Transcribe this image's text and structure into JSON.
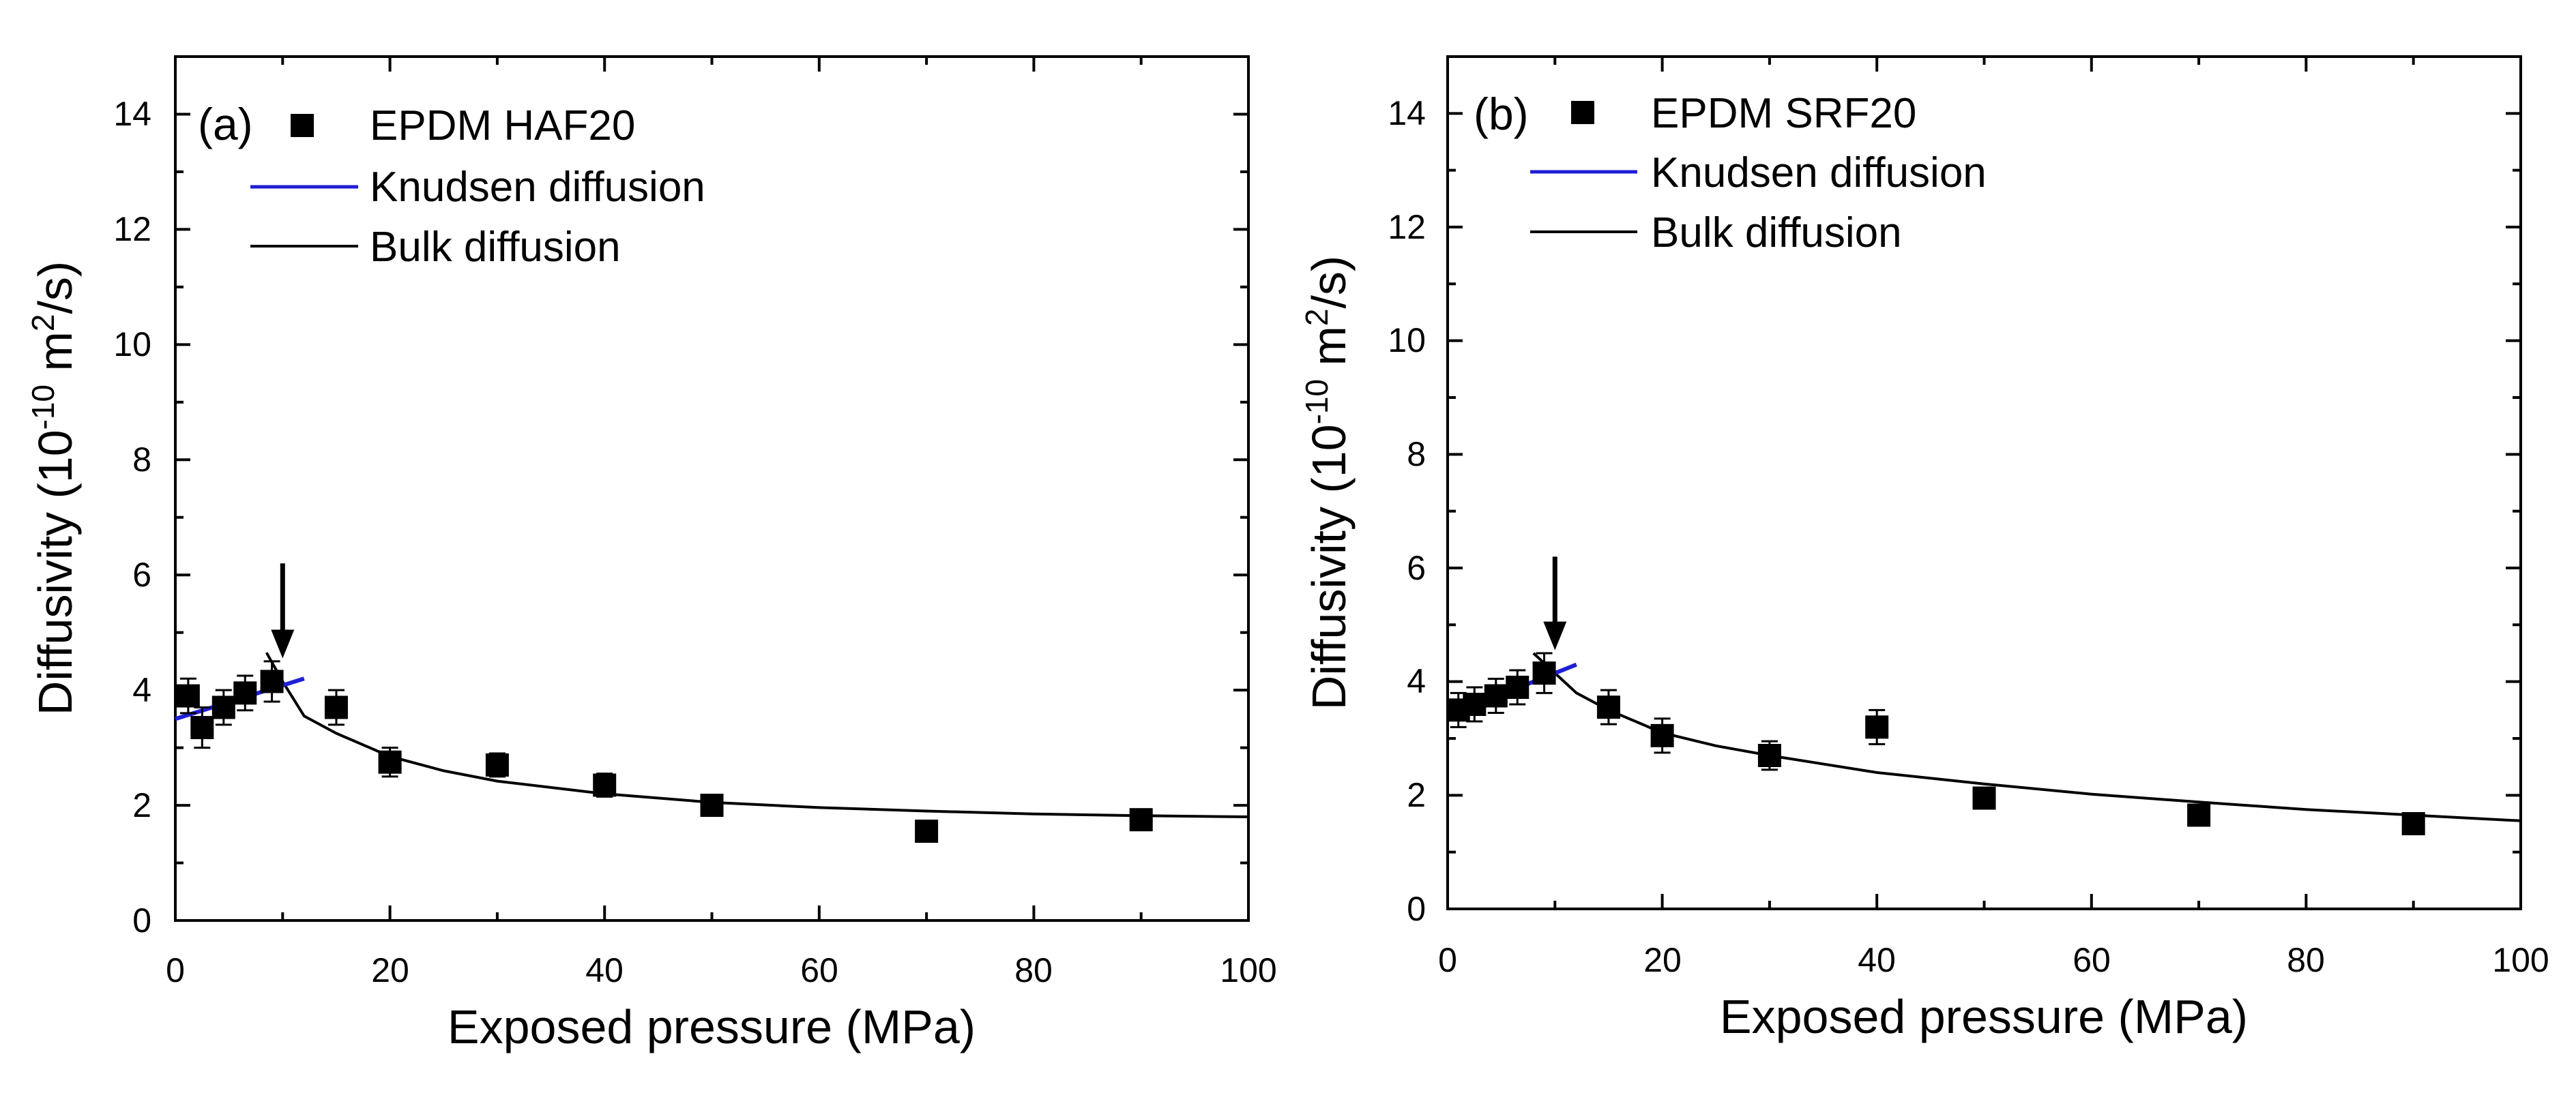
{
  "chart_data": [
    {
      "type": "scatter",
      "panel_label": "(a)",
      "title": "",
      "xlabel": "Exposed pressure (MPa)",
      "ylabel_base": "Diffusivity (10",
      "ylabel_exp1": "-10",
      "ylabel_mid": " m",
      "ylabel_exp2": "2",
      "ylabel_end": "/s)",
      "xlim": [
        0,
        100
      ],
      "ylim": [
        0,
        15
      ],
      "xticks": [
        0,
        20,
        40,
        60,
        80,
        100
      ],
      "yticks": [
        0,
        2,
        4,
        6,
        8,
        10,
        12,
        14
      ],
      "xtick_labels": [
        "0",
        "20",
        "40",
        "60",
        "80",
        "100"
      ],
      "ytick_labels": [
        "0",
        "2",
        "4",
        "6",
        "8",
        "10",
        "12",
        "14"
      ],
      "legend": [
        "EPDM HAF20",
        "Knudsen diffusion",
        "Bulk diffusion"
      ],
      "legend_position": "top-left",
      "colors": {
        "points": "#000000",
        "knudsen": "#1f1fd6",
        "bulk": "#000000"
      },
      "series": [
        {
          "name": "EPDM HAF20",
          "x": [
            1.2,
            2.5,
            4.5,
            6.5,
            9.0,
            15,
            20,
            30,
            40,
            50,
            70,
            90
          ],
          "y": [
            3.9,
            3.35,
            3.7,
            3.95,
            4.15,
            3.7,
            2.75,
            2.7,
            2.35,
            2.0,
            1.55,
            1.75
          ],
          "err": [
            0.3,
            0.35,
            0.3,
            0.3,
            0.35,
            0.3,
            0.25,
            0.2,
            0.2,
            0.15,
            0.12,
            0.12
          ]
        },
        {
          "name": "Knudsen diffusion",
          "x": [
            0,
            12
          ],
          "y": [
            3.5,
            4.2
          ]
        },
        {
          "name": "Bulk diffusion",
          "x": [
            8.5,
            10,
            12,
            15,
            20,
            25,
            30,
            40,
            50,
            60,
            70,
            80,
            90,
            100
          ],
          "y": [
            4.65,
            4.15,
            3.55,
            3.25,
            2.85,
            2.6,
            2.42,
            2.2,
            2.05,
            1.96,
            1.9,
            1.85,
            1.82,
            1.8
          ]
        }
      ],
      "annotations": [
        {
          "type": "arrow",
          "x": 10,
          "y_from": 6.2,
          "y_to": 4.6
        }
      ]
    },
    {
      "type": "scatter",
      "panel_label": "(b)",
      "title": "",
      "xlabel": "Exposed pressure (MPa)",
      "ylabel_base": "Diffusivity (10",
      "ylabel_exp1": "-10",
      "ylabel_mid": " m",
      "ylabel_exp2": "2",
      "ylabel_end": "/s)",
      "xlim": [
        0,
        100
      ],
      "ylim": [
        0,
        15
      ],
      "xticks": [
        0,
        20,
        40,
        60,
        80,
        100
      ],
      "yticks": [
        0,
        2,
        4,
        6,
        8,
        10,
        12,
        14
      ],
      "xtick_labels": [
        "0",
        "20",
        "40",
        "60",
        "80",
        "100"
      ],
      "ytick_labels": [
        "0",
        "2",
        "4",
        "6",
        "8",
        "10",
        "12",
        "14"
      ],
      "legend": [
        "EPDM SRF20",
        "Knudsen diffusion",
        "Bulk diffusion"
      ],
      "legend_position": "top-left",
      "colors": {
        "points": "#000000",
        "knudsen": "#1f1fd6",
        "bulk": "#000000"
      },
      "series": [
        {
          "name": "EPDM SRF20",
          "x": [
            1.0,
            2.5,
            4.5,
            6.5,
            9.0,
            15,
            20,
            30,
            40,
            50,
            70,
            90
          ],
          "y": [
            3.5,
            3.6,
            3.75,
            3.9,
            4.15,
            3.55,
            3.05,
            2.7,
            3.2,
            1.95,
            1.65,
            1.5
          ],
          "err": [
            0.3,
            0.3,
            0.3,
            0.3,
            0.35,
            0.3,
            0.3,
            0.25,
            0.3,
            0.12,
            0.12,
            0.1
          ]
        },
        {
          "name": "Knudsen diffusion",
          "x": [
            0,
            12
          ],
          "y": [
            3.4,
            4.3
          ]
        },
        {
          "name": "Bulk diffusion",
          "x": [
            8,
            10,
            12,
            15,
            20,
            25,
            30,
            40,
            50,
            60,
            70,
            80,
            90,
            100
          ],
          "y": [
            4.5,
            4.15,
            3.8,
            3.5,
            3.1,
            2.87,
            2.7,
            2.4,
            2.2,
            2.02,
            1.88,
            1.75,
            1.65,
            1.55
          ]
        }
      ],
      "annotations": [
        {
          "type": "arrow",
          "x": 10,
          "y_from": 6.2,
          "y_to": 4.6
        }
      ]
    }
  ]
}
